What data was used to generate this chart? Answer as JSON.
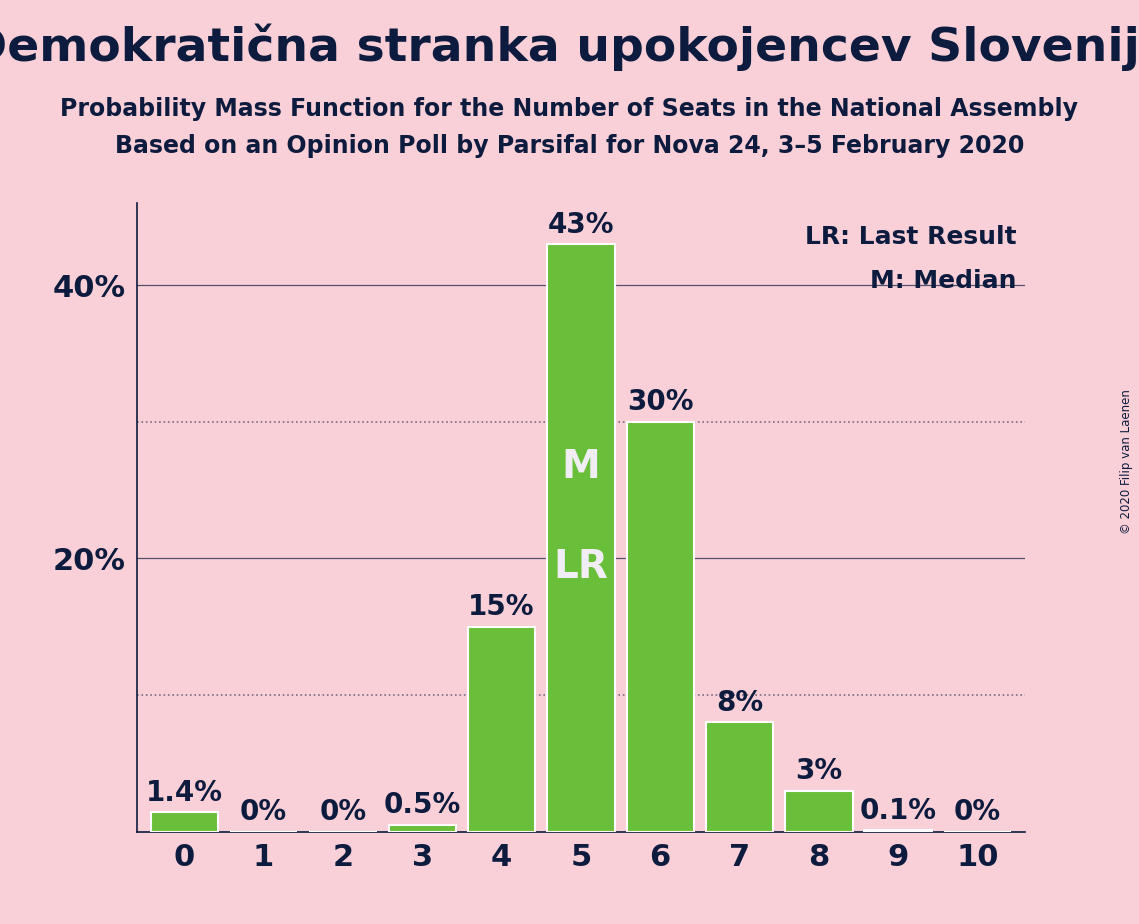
{
  "title": "Demokratična stranka upokojencev Slovenije",
  "subtitle1": "Probability Mass Function for the Number of Seats in the National Assembly",
  "subtitle2": "Based on an Opinion Poll by Parsifal for Nova 24, 3–5 February 2020",
  "copyright": "© 2020 Filip van Laenen",
  "categories": [
    0,
    1,
    2,
    3,
    4,
    5,
    6,
    7,
    8,
    9,
    10
  ],
  "values": [
    1.4,
    0.0,
    0.0,
    0.5,
    15.0,
    43.0,
    30.0,
    8.0,
    3.0,
    0.1,
    0.0
  ],
  "labels": [
    "1.4%",
    "0%",
    "0%",
    "0.5%",
    "15%",
    "43%",
    "30%",
    "8%",
    "3%",
    "0.1%",
    "0%"
  ],
  "bar_color": "#6abf3a",
  "background_color": "#f9d0d8",
  "text_color": "#0d1b3e",
  "median_bar": 5,
  "lr_bar": 5,
  "median_label": "M",
  "lr_label": "LR",
  "bar_text_color": "#f0eef4",
  "ylim": [
    0,
    46
  ],
  "solid_grid_values": [
    20,
    40
  ],
  "dotted_grid_values": [
    10,
    30
  ],
  "legend_lr": "LR: Last Result",
  "legend_m": "M: Median",
  "title_fontsize": 34,
  "subtitle_fontsize": 17,
  "tick_fontsize": 22,
  "bar_label_fontsize": 20,
  "inner_label_fontsize": 28,
  "legend_fontsize": 18,
  "ytick_positions": [
    20,
    40
  ],
  "ytick_labels": [
    "20%",
    "40%"
  ]
}
